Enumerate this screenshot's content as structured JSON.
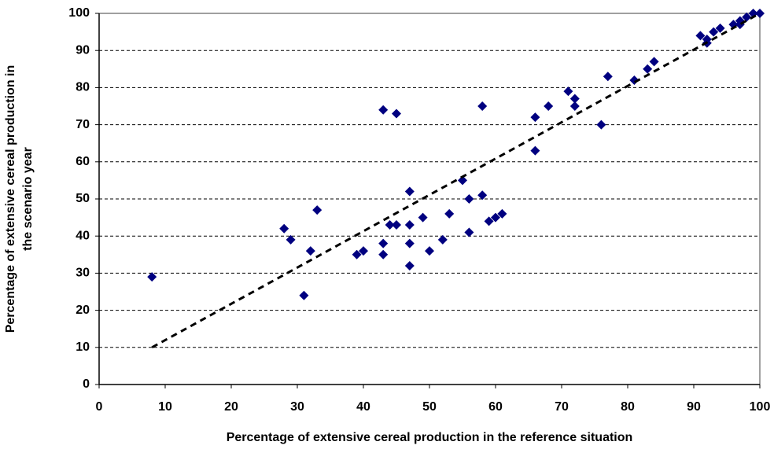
{
  "chart_data": {
    "type": "scatter",
    "xlabel": "Percentage of extensive cereal production in the reference situation",
    "ylabel": [
      "Percentage of extensive cereal production in",
      "the scenario year"
    ],
    "x": [
      8,
      28,
      29,
      31,
      32,
      33,
      39,
      40,
      43,
      43,
      43,
      44,
      45,
      45,
      47,
      47,
      47,
      47,
      49,
      50,
      52,
      53,
      55,
      56,
      56,
      58,
      58,
      59,
      60,
      61,
      66,
      66,
      68,
      71,
      72,
      72,
      76,
      77,
      81,
      83,
      84,
      91,
      92,
      92,
      93,
      94,
      96,
      97,
      97,
      98,
      99,
      100
    ],
    "values": [
      29,
      42,
      39,
      24,
      36,
      47,
      35,
      36,
      74,
      38,
      35,
      43,
      43,
      73,
      52,
      43,
      38,
      32,
      45,
      36,
      39,
      46,
      55,
      50,
      41,
      75,
      51,
      44,
      45,
      46,
      72,
      63,
      75,
      79,
      77,
      75,
      70,
      83,
      82,
      85,
      87,
      94,
      93,
      92,
      95,
      96,
      97,
      97,
      98,
      99,
      100,
      100
    ],
    "color": "#000080",
    "trendline": {
      "x": [
        8,
        100
      ],
      "values": [
        10,
        100
      ],
      "color": "#000000"
    },
    "xlim": [
      0,
      100
    ],
    "ylim": [
      0,
      100
    ],
    "xticks": [
      0,
      10,
      20,
      30,
      40,
      50,
      60,
      70,
      80,
      90,
      100
    ],
    "yticks": [
      0,
      10,
      20,
      30,
      40,
      50,
      60,
      70,
      80,
      90,
      100
    ],
    "grid": true
  }
}
